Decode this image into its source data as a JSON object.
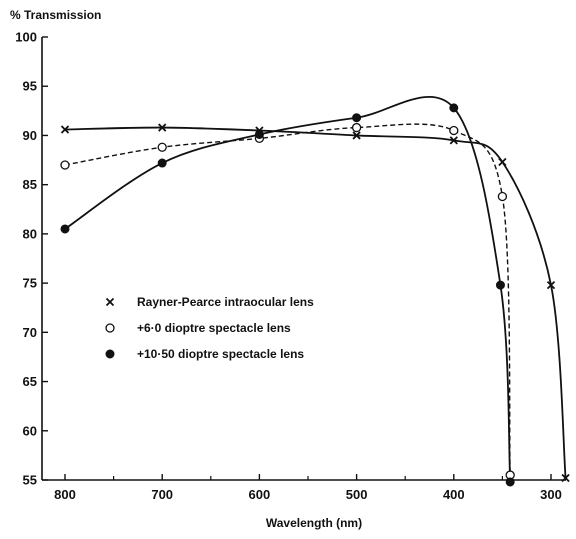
{
  "chart_data": {
    "type": "line",
    "title": "",
    "ylabel": "% Transmission",
    "xlabel": "Wavelength (nm)",
    "x_reversed": true,
    "xlim": [
      800,
      285
    ],
    "ylim": [
      55,
      100
    ],
    "xticks": [
      800,
      700,
      600,
      500,
      400,
      300
    ],
    "yticks": [
      55,
      60,
      65,
      70,
      75,
      80,
      85,
      90,
      95,
      100
    ],
    "grid": false,
    "legend_position": "left-middle",
    "series": [
      {
        "name": "Rayner-Pearce intraocular lens",
        "marker": "x",
        "line_style": "solid",
        "x": [
          800,
          700,
          600,
          500,
          400,
          350,
          300,
          285
        ],
        "y": [
          90.6,
          90.8,
          90.5,
          90.0,
          89.5,
          87.3,
          74.8,
          55.2
        ]
      },
      {
        "name": "+6·0 dioptre spectacle lens",
        "marker": "open-circle",
        "line_style": "dashed",
        "x": [
          800,
          700,
          600,
          500,
          400,
          350,
          342
        ],
        "y": [
          87.0,
          88.8,
          89.7,
          90.8,
          90.5,
          83.8,
          55.5
        ]
      },
      {
        "name": "+10·50 dioptre spectacle lens",
        "marker": "filled-circle",
        "line_style": "solid",
        "x": [
          800,
          700,
          600,
          500,
          400,
          352,
          342
        ],
        "y": [
          80.5,
          87.2,
          90.1,
          91.8,
          92.8,
          74.8,
          54.8
        ]
      }
    ]
  }
}
